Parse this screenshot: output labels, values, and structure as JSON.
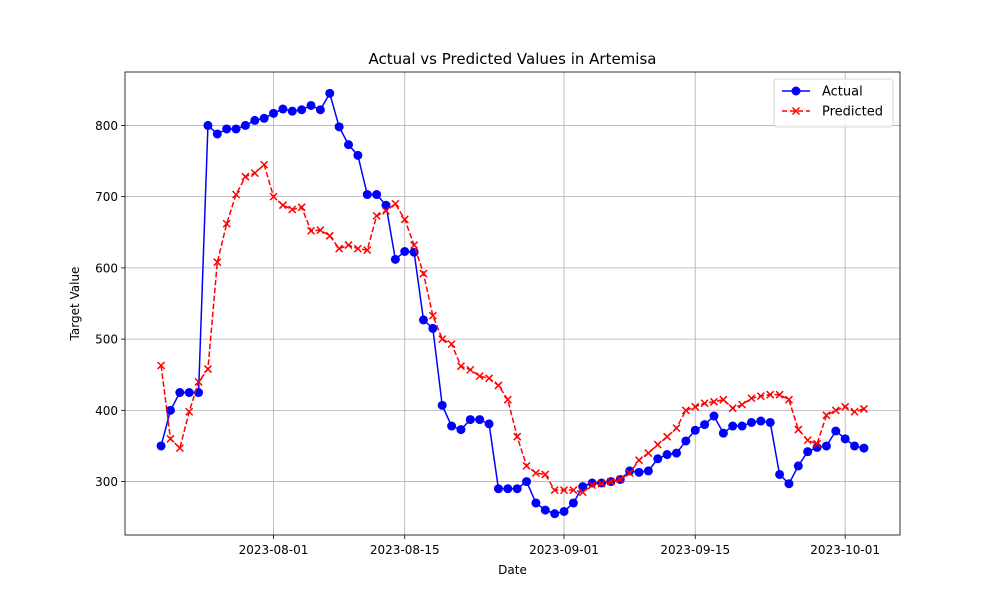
{
  "chart_data": {
    "type": "line",
    "title": "Actual vs Predicted Values in Artemisa",
    "xlabel": "Date",
    "ylabel": "Target Value",
    "x_start": "2023-07-20",
    "x_tick_labels": [
      "2023-08-01",
      "2023-08-15",
      "2023-09-01",
      "2023-09-15",
      "2023-10-01"
    ],
    "y_ticks": [
      300,
      400,
      500,
      600,
      700,
      800
    ],
    "ylim": [
      225,
      875
    ],
    "grid": true,
    "legend_position": "top-right",
    "series": [
      {
        "name": "Actual",
        "color": "#0000ff",
        "line_style": "solid",
        "marker": "circle",
        "values": [
          350,
          400,
          425,
          425,
          425,
          800,
          788,
          795,
          795,
          800,
          807,
          810,
          817,
          823,
          820,
          822,
          828,
          822,
          845,
          798,
          773,
          758,
          703,
          703,
          688,
          612,
          623,
          622,
          527,
          515,
          407,
          378,
          373,
          387,
          387,
          381,
          290,
          290,
          290,
          300,
          270,
          260,
          255,
          258,
          270,
          293,
          298,
          298,
          300,
          303,
          315,
          313,
          315,
          332,
          338,
          340,
          357,
          372,
          380,
          392,
          368,
          378,
          378,
          383,
          385,
          383,
          310,
          297,
          322,
          342,
          348,
          350,
          371,
          360,
          350,
          347
        ]
      },
      {
        "name": "Predicted",
        "color": "#ff0000",
        "line_style": "dashed",
        "marker": "x",
        "values": [
          463,
          360,
          347,
          398,
          440,
          458,
          608,
          662,
          703,
          728,
          733,
          745,
          700,
          688,
          682,
          685,
          652,
          653,
          645,
          627,
          632,
          627,
          625,
          673,
          680,
          690,
          668,
          632,
          592,
          533,
          500,
          493,
          462,
          457,
          448,
          445,
          435,
          415,
          363,
          322,
          312,
          310,
          288,
          288,
          288,
          285,
          295,
          297,
          300,
          303,
          312,
          330,
          340,
          352,
          363,
          375,
          400,
          405,
          410,
          412,
          415,
          403,
          408,
          417,
          420,
          422,
          422,
          415,
          373,
          358,
          353,
          393,
          400,
          405,
          398,
          402
        ]
      }
    ]
  }
}
